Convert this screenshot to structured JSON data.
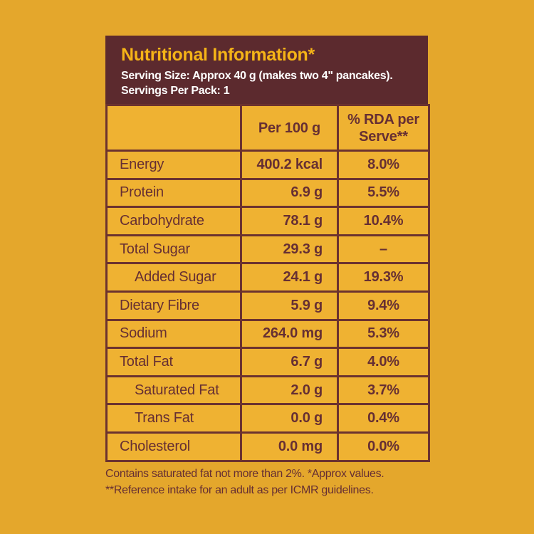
{
  "header": {
    "title": "Nutritional Information*",
    "serving_size": "Serving Size: Approx 40 g (makes two 4\" pancakes).",
    "servings_per_pack": "Servings Per Pack: 1"
  },
  "table": {
    "column_headers": {
      "per_100g": "Per 100 g",
      "rda_per_serve": "% RDA per Serve**"
    },
    "rows": [
      {
        "label": "Energy",
        "per_100g": "400.2 kcal",
        "rda_per_serve": "8.0%",
        "indent": false
      },
      {
        "label": "Protein",
        "per_100g": "6.9 g",
        "rda_per_serve": "5.5%",
        "indent": false
      },
      {
        "label": "Carbohydrate",
        "per_100g": "78.1 g",
        "rda_per_serve": "10.4%",
        "indent": false
      },
      {
        "label": "Total Sugar",
        "per_100g": "29.3 g",
        "rda_per_serve": "–",
        "indent": false
      },
      {
        "label": "Added Sugar",
        "per_100g": "24.1 g",
        "rda_per_serve": "19.3%",
        "indent": true
      },
      {
        "label": "Dietary Fibre",
        "per_100g": "5.9 g",
        "rda_per_serve": "9.4%",
        "indent": false
      },
      {
        "label": "Sodium",
        "per_100g": "264.0 mg",
        "rda_per_serve": "5.3%",
        "indent": false
      },
      {
        "label": "Total Fat",
        "per_100g": "6.7 g",
        "rda_per_serve": "4.0%",
        "indent": false
      },
      {
        "label": "Saturated Fat",
        "per_100g": "2.0 g",
        "rda_per_serve": "3.7%",
        "indent": true
      },
      {
        "label": "Trans Fat",
        "per_100g": "0.0 g",
        "rda_per_serve": "0.4%",
        "indent": true
      },
      {
        "label": "Cholesterol",
        "per_100g": "0.0 mg",
        "rda_per_serve": "0.0%",
        "indent": false
      }
    ]
  },
  "footnotes": {
    "line1": "Contains saturated fat not more than 2%. *Approx values.",
    "line2": "**Reference intake for an adult as per ICMR guidelines."
  },
  "colors": {
    "page_background": "#e4a72c",
    "cell_background": "#efb232",
    "header_background": "#5c2a2e",
    "border": "#6b322f",
    "text_maroon": "#662f33",
    "title_gold": "#f5b417",
    "header_text_white": "#ffffff"
  }
}
